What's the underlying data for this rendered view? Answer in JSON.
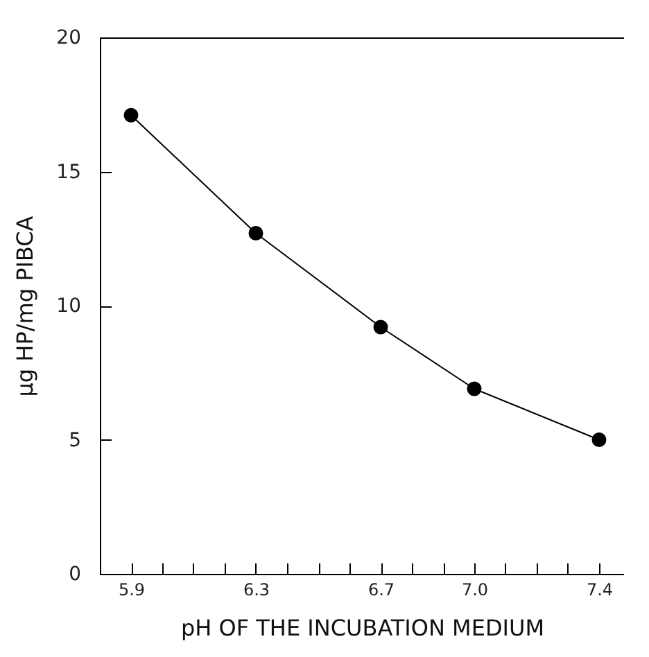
{
  "chart_data": {
    "type": "line",
    "xlabel": "pH OF THE INCUBATION MEDIUM",
    "ylabel": "μg HP/mg PIBCA",
    "x": [
      5.9,
      6.3,
      6.7,
      7.0,
      7.4
    ],
    "series": [
      {
        "color": "#000000",
        "values": [
          17.1,
          12.7,
          9.2,
          6.9,
          5.0
        ]
      }
    ],
    "xlim": [
      5.8,
      7.48
    ],
    "ylim": [
      0,
      20
    ],
    "xticks": [
      5.9,
      {
        "value": 6.0,
        "label": null
      },
      {
        "value": 6.1,
        "label": null
      },
      {
        "value": 6.2,
        "label": null
      },
      6.3,
      {
        "value": 6.4,
        "label": null
      },
      {
        "value": 6.5,
        "label": null
      },
      {
        "value": 6.6,
        "label": null
      },
      6.7,
      {
        "value": 6.8,
        "label": null
      },
      {
        "value": 6.9,
        "label": null
      },
      {
        "value": 7.0,
        "label": "7.0"
      },
      {
        "value": 7.1,
        "label": null
      },
      {
        "value": 7.2,
        "label": null
      },
      {
        "value": 7.3,
        "label": null
      },
      7.4
    ],
    "yticks": [
      0,
      5,
      10,
      15,
      20
    ],
    "marker": "circle",
    "line_style": "solid",
    "grid": false
  }
}
